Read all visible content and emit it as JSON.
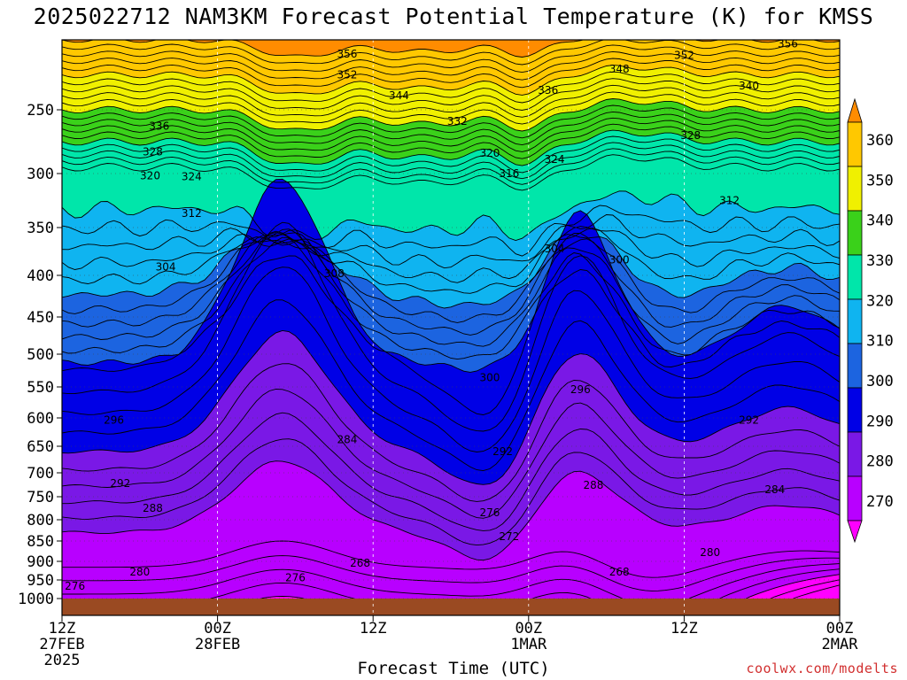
{
  "title": "2025022712 NAM3KM Forecast Potential Temperature (K) for KMSS",
  "xlabel": "Forecast Time (UTC)",
  "credit": "coolwx.com/modelts",
  "chart_data": {
    "type": "heatmap",
    "title": "2025022712 NAM3KM Forecast Potential Temperature (K) for KMSS",
    "xlabel": "Forecast Time (UTC)",
    "ylabel": "",
    "x_ticks": [
      {
        "hour": 0,
        "lines": [
          "12Z",
          "27FEB",
          "2025"
        ]
      },
      {
        "hour": 12,
        "lines": [
          "00Z",
          "28FEB"
        ]
      },
      {
        "hour": 24,
        "lines": [
          "12Z"
        ]
      },
      {
        "hour": 36,
        "lines": [
          "00Z",
          "1MAR"
        ]
      },
      {
        "hour": 48,
        "lines": [
          "12Z"
        ]
      },
      {
        "hour": 60,
        "lines": [
          "00Z",
          "2MAR"
        ]
      }
    ],
    "xlim_hours": [
      0,
      60
    ],
    "y_ticks": [
      "250",
      "300",
      "350",
      "400",
      "450",
      "500",
      "550",
      "600",
      "650",
      "700",
      "750",
      "800",
      "850",
      "900",
      "950",
      "1000"
    ],
    "ylim_hpa": [
      200,
      1025
    ],
    "colorbar": {
      "levels": [
        270,
        280,
        290,
        300,
        310,
        320,
        330,
        340,
        350,
        360
      ],
      "labels": [
        "270",
        "280",
        "290",
        "300",
        "310",
        "320",
        "330",
        "340",
        "350",
        "360"
      ],
      "colors": [
        "#ff00ff",
        "#b800ff",
        "#7a18e6",
        "#0000e6",
        "#1c64e0",
        "#0fb4f0",
        "#00e6aa",
        "#3ad11a",
        "#f0f000",
        "#ffc800",
        "#ff8c00"
      ]
    },
    "contour_labels": [
      {
        "text": "356",
        "hour": 22.0,
        "p": 210
      },
      {
        "text": "352",
        "hour": 22.0,
        "p": 225
      },
      {
        "text": "344",
        "hour": 26.0,
        "p": 240
      },
      {
        "text": "336",
        "hour": 7.5,
        "p": 263
      },
      {
        "text": "332",
        "hour": 30.5,
        "p": 259
      },
      {
        "text": "336",
        "hour": 37.5,
        "p": 236
      },
      {
        "text": "348",
        "hour": 43.0,
        "p": 221
      },
      {
        "text": "352",
        "hour": 48.0,
        "p": 211
      },
      {
        "text": "356",
        "hour": 56.0,
        "p": 203
      },
      {
        "text": "340",
        "hour": 53.0,
        "p": 233
      },
      {
        "text": "328",
        "hour": 48.5,
        "p": 270
      },
      {
        "text": "328",
        "hour": 7.0,
        "p": 283
      },
      {
        "text": "320",
        "hour": 6.8,
        "p": 302
      },
      {
        "text": "324",
        "hour": 10.0,
        "p": 303
      },
      {
        "text": "320",
        "hour": 33.0,
        "p": 284
      },
      {
        "text": "316",
        "hour": 34.5,
        "p": 300
      },
      {
        "text": "324",
        "hour": 38.0,
        "p": 289
      },
      {
        "text": "312",
        "hour": 10.0,
        "p": 337
      },
      {
        "text": "312",
        "hour": 51.5,
        "p": 325
      },
      {
        "text": "304",
        "hour": 8.0,
        "p": 391
      },
      {
        "text": "308",
        "hour": 21.0,
        "p": 398
      },
      {
        "text": "304",
        "hour": 38.0,
        "p": 372
      },
      {
        "text": "300",
        "hour": 43.0,
        "p": 384
      },
      {
        "text": "300",
        "hour": 33.0,
        "p": 536
      },
      {
        "text": "296",
        "hour": 40.0,
        "p": 554
      },
      {
        "text": "296",
        "hour": 4.0,
        "p": 604
      },
      {
        "text": "292",
        "hour": 53.0,
        "p": 604
      },
      {
        "text": "284",
        "hour": 22.0,
        "p": 638
      },
      {
        "text": "292",
        "hour": 34.0,
        "p": 660
      },
      {
        "text": "292",
        "hour": 4.5,
        "p": 722
      },
      {
        "text": "288",
        "hour": 41.0,
        "p": 726
      },
      {
        "text": "284",
        "hour": 55.0,
        "p": 735
      },
      {
        "text": "288",
        "hour": 7.0,
        "p": 775
      },
      {
        "text": "276",
        "hour": 33.0,
        "p": 785
      },
      {
        "text": "272",
        "hour": 34.5,
        "p": 840
      },
      {
        "text": "280",
        "hour": 50.0,
        "p": 878
      },
      {
        "text": "268",
        "hour": 23.0,
        "p": 905
      },
      {
        "text": "280",
        "hour": 6.0,
        "p": 928
      },
      {
        "text": "268",
        "hour": 43.0,
        "p": 929
      },
      {
        "text": "276",
        "hour": 18.0,
        "p": 944
      },
      {
        "text": "276",
        "hour": 1.0,
        "p": 967
      }
    ]
  }
}
